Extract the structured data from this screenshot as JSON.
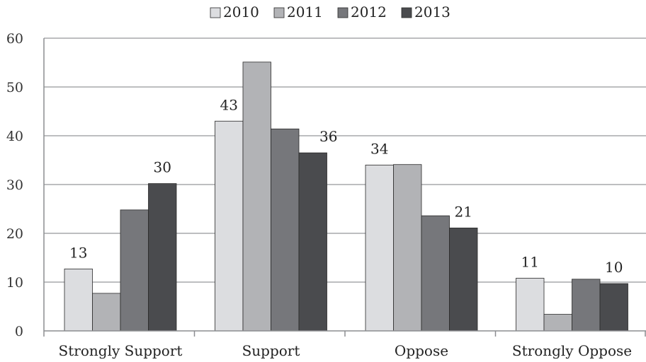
{
  "chart_data": {
    "type": "bar",
    "categories": [
      "Strongly Support",
      "Support",
      "Oppose",
      "Strongly Oppose"
    ],
    "series": [
      {
        "name": "2010",
        "values": [
          12.7,
          43.0,
          34.0,
          10.8
        ],
        "color": "#dcdde0"
      },
      {
        "name": "2011",
        "values": [
          7.7,
          55.1,
          34.1,
          3.4
        ],
        "color": "#b2b3b6"
      },
      {
        "name": "2012",
        "values": [
          24.8,
          41.4,
          23.6,
          10.6
        ],
        "color": "#76777b"
      },
      {
        "name": "2013",
        "values": [
          30.2,
          36.5,
          21.1,
          9.7
        ],
        "color": "#4a4b4e"
      }
    ],
    "data_labels": [
      {
        "category": "Strongly Support",
        "series": "2010",
        "text": "13"
      },
      {
        "category": "Strongly Support",
        "series": "2013",
        "text": "30"
      },
      {
        "category": "Support",
        "series": "2010",
        "text": "43"
      },
      {
        "category": "Support",
        "series": "2013",
        "text": "36"
      },
      {
        "category": "Oppose",
        "series": "2010",
        "text": "34"
      },
      {
        "category": "Oppose",
        "series": "2013",
        "text": "21"
      },
      {
        "category": "Strongly Oppose",
        "series": "2010",
        "text": "11"
      },
      {
        "category": "Strongly Oppose",
        "series": "2013",
        "text": "10"
      }
    ],
    "ylim": [
      0,
      60
    ],
    "yticks": [
      0,
      10,
      20,
      30,
      40,
      50,
      60
    ],
    "title": "",
    "xlabel": "",
    "ylabel": "",
    "grid": true,
    "legend_position": "top-center",
    "gridline_color": "#a7a8ab",
    "axis_color": "#8c8d90"
  }
}
